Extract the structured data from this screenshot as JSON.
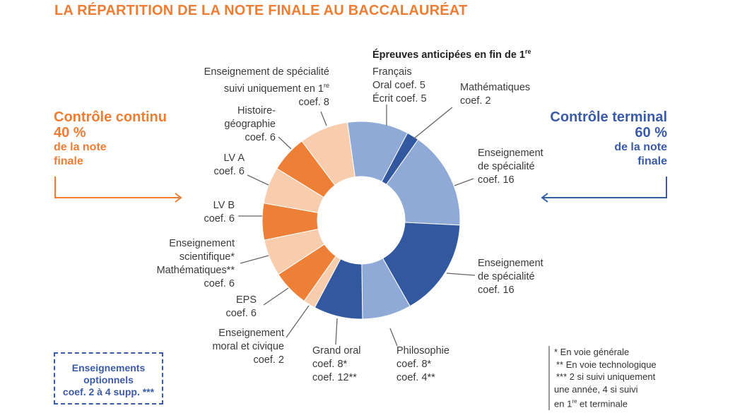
{
  "title": "LA RÉPARTITION DE LA NOTE FINALE AU BACCALAURÉAT",
  "left": {
    "heading": "Contrôle continu",
    "percent": "40 %",
    "sub1": "de la note",
    "sub2": "finale"
  },
  "right": {
    "heading": "Contrôle terminal",
    "percent": "60 %",
    "sub1": "de la note",
    "sub2": "finale"
  },
  "anticipated_heading": "Épreuves anticipées en fin de 1",
  "anticipated_sup": "re",
  "labels": {
    "francais": [
      "Français",
      "Oral coef. 5",
      "Écrit coef. 5"
    ],
    "maths": [
      "Mathématiques",
      "coef. 2"
    ],
    "spe1": [
      "Enseignement",
      "de spécialité",
      "coef. 16"
    ],
    "spe2": [
      "Enseignement",
      "de spécialité",
      "coef. 16"
    ],
    "philo": [
      "Philosophie",
      "coef. 8*",
      "coef. 4**"
    ],
    "grandoral": [
      "Grand oral",
      "coef. 8*",
      "coef. 12**"
    ],
    "emc": [
      "Enseignement",
      "moral et civique",
      "coef. 2"
    ],
    "eps": [
      "EPS",
      "coef. 6"
    ],
    "es": [
      "Enseignement",
      "scientifique*",
      "Mathématiques**",
      "coef. 6"
    ],
    "lvb": [
      "LV B",
      "coef. 6"
    ],
    "lva": [
      "LV A",
      "coef. 6"
    ],
    "hg": [
      "Histoire-",
      "géographie",
      "coef. 6"
    ],
    "spe1re": [
      "Enseignement de spécialité",
      "suivi uniquement en 1",
      "re",
      "coef. 8"
    ]
  },
  "optional_box": [
    "Enseignements",
    "optionnels",
    "coef. 2 à 4 supp. ***"
  ],
  "notes": [
    "* En voie générale",
    "** En voie technologique",
    "*** 2 si suivi uniquement",
    "une année, 4 si suivi",
    "en 1",
    "re",
    " et terminale"
  ],
  "colors": {
    "orange": "#ee7f36",
    "peach": "#f8cdae",
    "light_blue": "#8faad6",
    "dark_blue": "#3258a0"
  },
  "chart_data": {
    "type": "pie",
    "unit": "coefficient",
    "segments": [
      {
        "name": "Français",
        "value": 10,
        "color": "light_blue"
      },
      {
        "name": "Mathématiques",
        "value": 2,
        "color": "dark_blue"
      },
      {
        "name": "Enseignement de spécialité",
        "value": 16,
        "color": "light_blue"
      },
      {
        "name": "Enseignement de spécialité",
        "value": 16,
        "color": "dark_blue"
      },
      {
        "name": "Philosophie",
        "value": 8,
        "color": "light_blue"
      },
      {
        "name": "Grand oral",
        "value": 8,
        "color": "dark_blue"
      },
      {
        "name": "Enseignement moral et civique",
        "value": 2,
        "color": "peach"
      },
      {
        "name": "EPS",
        "value": 6,
        "color": "orange"
      },
      {
        "name": "Enseignement scientifique",
        "value": 6,
        "color": "peach"
      },
      {
        "name": "LV B",
        "value": 6,
        "color": "orange"
      },
      {
        "name": "LV A",
        "value": 6,
        "color": "peach"
      },
      {
        "name": "Histoire-géographie",
        "value": 6,
        "color": "orange"
      },
      {
        "name": "Enseignement de spécialité suivi uniquement en 1re",
        "value": 8,
        "color": "peach"
      }
    ]
  }
}
